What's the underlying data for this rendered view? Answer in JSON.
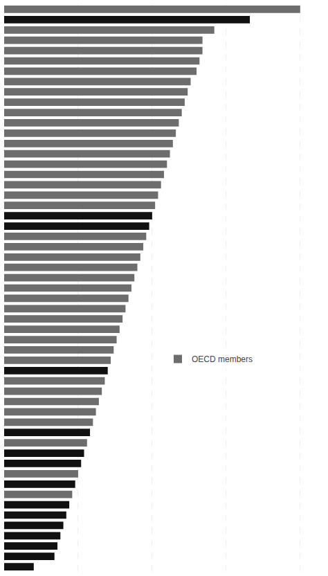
{
  "chart_data": {
    "type": "bar",
    "orientation": "horizontal",
    "categories": [
      null,
      null,
      null,
      null,
      null,
      null,
      null,
      null,
      null,
      null,
      null,
      null,
      null,
      null,
      null,
      null,
      null,
      null,
      null,
      null,
      null,
      null,
      null,
      null,
      null,
      null,
      null,
      null,
      null,
      null,
      null,
      null,
      null,
      null,
      null,
      null,
      null,
      null,
      null,
      null,
      null,
      null,
      null,
      null,
      null,
      null,
      null,
      null,
      null,
      null,
      null,
      null,
      null,
      null,
      null
    ],
    "series": [
      {
        "name": "OECD members",
        "color": "#6d6d6d",
        "values": [
          100,
          null,
          71,
          67,
          67,
          66,
          65,
          63,
          62,
          61,
          60,
          59,
          58,
          57,
          56,
          55,
          54,
          53,
          52,
          51,
          null,
          null,
          48,
          47,
          46,
          45,
          44,
          43,
          42,
          41,
          40,
          39,
          38,
          37,
          36,
          null,
          34,
          33,
          32,
          31,
          30,
          null,
          28,
          null,
          null,
          25,
          null,
          23,
          null,
          null,
          null,
          null,
          null,
          null,
          null
        ]
      },
      {
        "color": "#111111",
        "values": [
          null,
          83,
          null,
          null,
          null,
          null,
          null,
          null,
          null,
          null,
          null,
          null,
          null,
          null,
          null,
          null,
          null,
          null,
          null,
          null,
          50,
          49,
          null,
          null,
          null,
          null,
          null,
          null,
          null,
          null,
          null,
          null,
          null,
          null,
          null,
          35,
          null,
          null,
          null,
          null,
          null,
          29,
          null,
          27,
          26,
          null,
          24,
          null,
          22,
          21,
          20,
          19,
          18,
          17,
          10
        ]
      }
    ],
    "xlim": [
      0,
      108
    ],
    "xticks": [
      25,
      50,
      75,
      100
    ],
    "grid": true,
    "tick_labels": false,
    "legend": "right"
  }
}
